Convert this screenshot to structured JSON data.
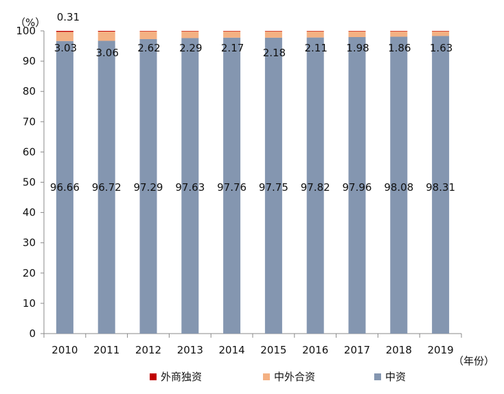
{
  "chart_data": {
    "type": "bar",
    "stacked": true,
    "y_unit_label": "（%）",
    "x_unit_label": "（年份）",
    "categories": [
      "2010",
      "2011",
      "2012",
      "2013",
      "2014",
      "2015",
      "2016",
      "2017",
      "2018",
      "2019"
    ],
    "ylim": [
      0,
      100
    ],
    "yticks": [
      0,
      10,
      20,
      30,
      40,
      50,
      60,
      70,
      80,
      90,
      100
    ],
    "series": [
      {
        "name": "中资",
        "color": "#8496b0",
        "values": [
          96.66,
          96.72,
          97.29,
          97.63,
          97.76,
          97.75,
          97.82,
          97.96,
          98.08,
          98.31
        ],
        "labels": [
          "96.66",
          "96.72",
          "97.29",
          "97.63",
          "97.76",
          "97.75",
          "97.82",
          "97.96",
          "98.08",
          "98.31"
        ]
      },
      {
        "name": "中外合资",
        "color": "#f4b183",
        "values": [
          3.03,
          3.06,
          2.62,
          2.29,
          2.17,
          2.18,
          2.11,
          1.98,
          1.86,
          1.63
        ],
        "labels": [
          "3.03",
          "3.06",
          "2.62",
          "2.29",
          "2.17",
          "2.18",
          "2.11",
          "1.98",
          "1.86",
          "1.63"
        ]
      },
      {
        "name": "外商独资",
        "color": "#c00000",
        "values": [
          0.31,
          0.22,
          0.09,
          0.08,
          0.07,
          0.07,
          0.07,
          0.06,
          0.06,
          0.06
        ],
        "labels": [
          "0.31",
          "",
          "",
          "",
          "",
          "",
          "",
          "",
          "",
          ""
        ]
      }
    ],
    "legend_order": [
      "外商独资",
      "中外合资",
      "中资"
    ]
  }
}
